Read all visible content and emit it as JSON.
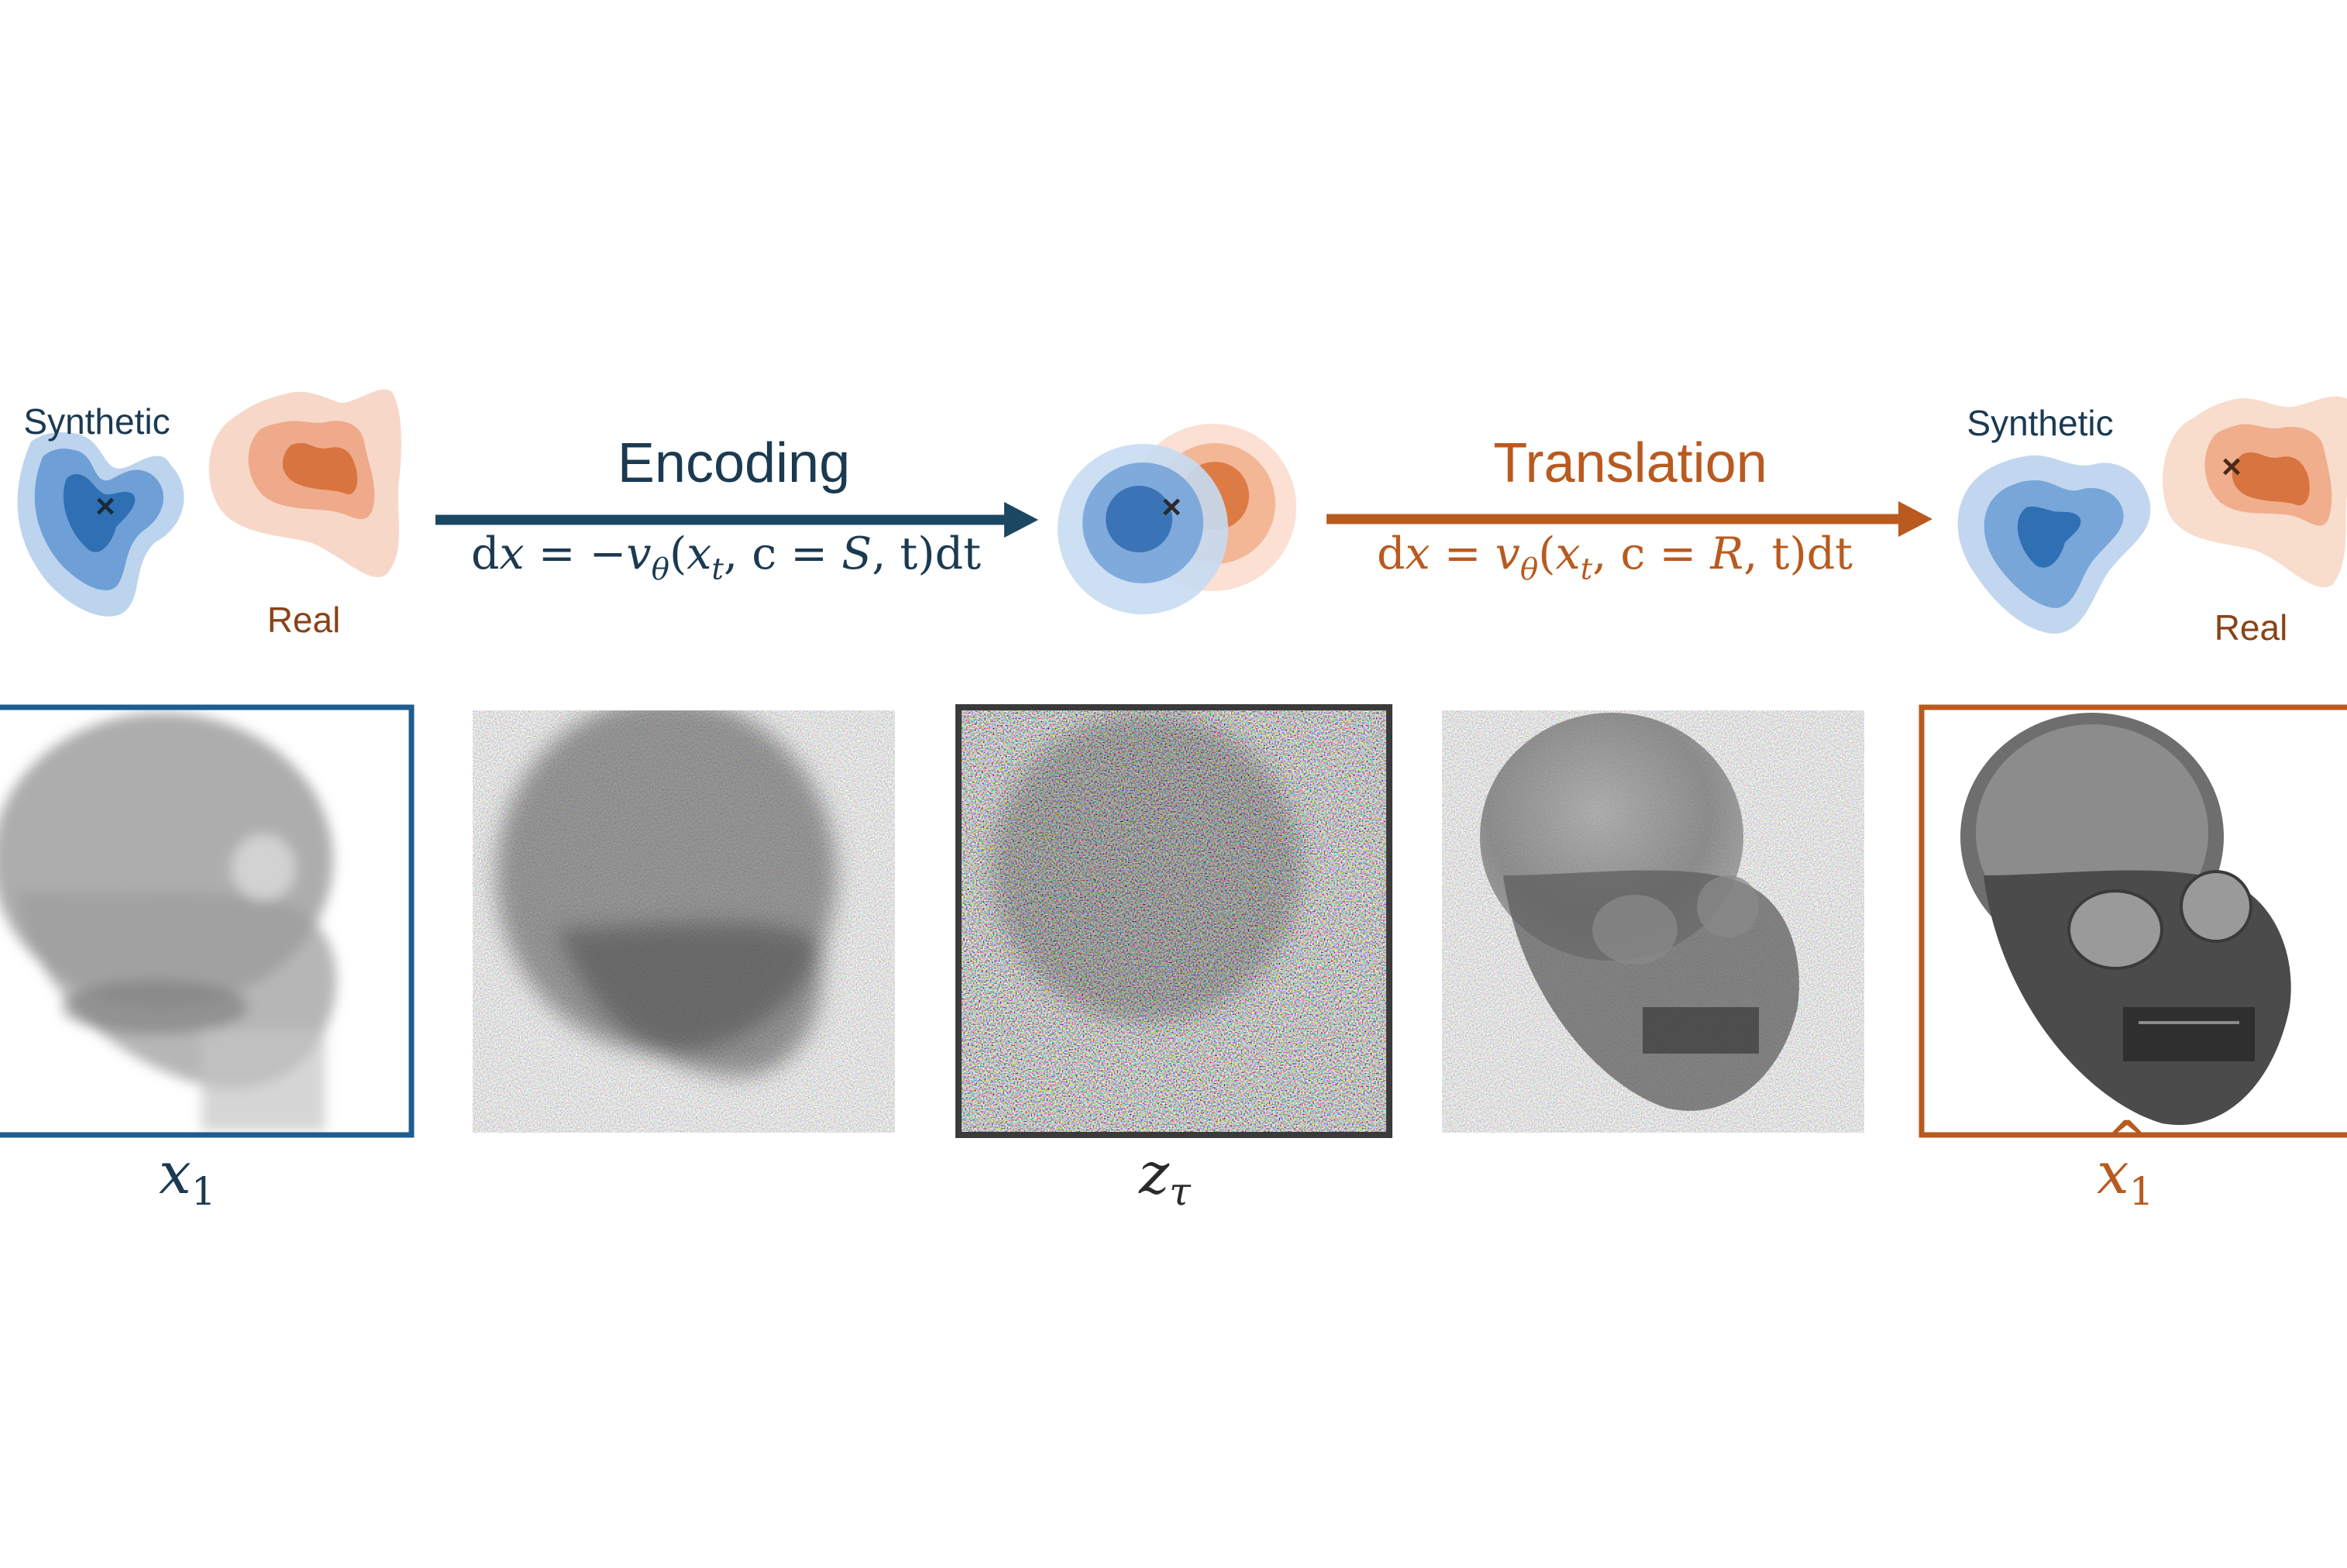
{
  "colors": {
    "blue": "#1f5c8f",
    "blue_dark": "#1b4762",
    "orange": "#b95a1f",
    "text_blue": "#1b3a52",
    "text_orange": "#8a4316",
    "frame_dark": "#3a3a3a"
  },
  "left_distribution": {
    "synthetic_label": "Synthetic",
    "real_label": "Real",
    "marker": "×"
  },
  "encoding": {
    "title": "Encoding",
    "eq": {
      "dx": "d",
      "x": "x",
      "eqsign": " = −",
      "v": "v",
      "theta": "θ",
      "open": "(",
      "xt": "x",
      "t_sub": "t",
      "c": ", c = ",
      "S": "S",
      "t2": ", t",
      "close": ")dt"
    }
  },
  "latent": {
    "marker": "×"
  },
  "translation": {
    "title": "Translation",
    "eq": {
      "dx": "d",
      "x": "x",
      "eqsign": " = ",
      "v": "v",
      "theta": "θ",
      "open": "(",
      "xt": "x",
      "t_sub": "t",
      "c": ", c = ",
      "R": "R",
      "t2": ", t",
      "close": ")dt"
    }
  },
  "right_distribution": {
    "synthetic_label": "Synthetic",
    "real_label": "Real",
    "marker": "×"
  },
  "panels": {
    "x1": {
      "base": "x",
      "sub": "1",
      "icon": "synthetic-xray-skull"
    },
    "noisy_encode": {
      "icon": "partially-noised-xray"
    },
    "z_tau": {
      "base": "z",
      "sub": "τ",
      "icon": "noise-latent"
    },
    "noisy_translate": {
      "icon": "partially-denoised-xray"
    },
    "x1_hat": {
      "hat": "^",
      "base": "x",
      "sub": "1",
      "icon": "real-style-xray-skull"
    }
  }
}
